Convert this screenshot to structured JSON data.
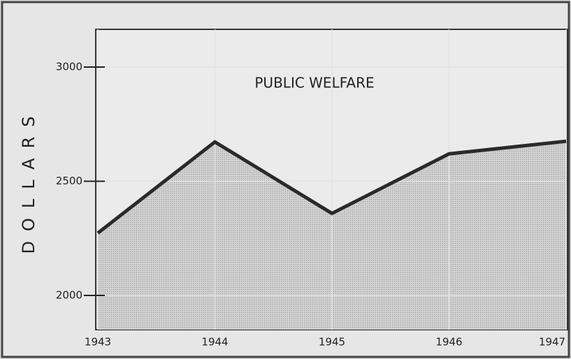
{
  "chart_data": {
    "type": "area",
    "title": "PUBLIC WELFARE",
    "y_label": "DOLLARS",
    "x": [
      1943,
      1944,
      1945,
      1946,
      1947
    ],
    "series": [
      {
        "name": "PUBLIC WELFARE",
        "color": "#2a2a2a",
        "fill": "#bdbdbd",
        "values": [
          2273,
          2672,
          2359,
          2620,
          2675
        ]
      }
    ],
    "xlim": [
      1943,
      1947
    ],
    "xticks": [
      1943,
      1944,
      1945,
      1946,
      1947
    ],
    "ylim": [
      1850,
      3165
    ],
    "yticks": [
      2000,
      2500,
      3000
    ],
    "grid": true
  }
}
